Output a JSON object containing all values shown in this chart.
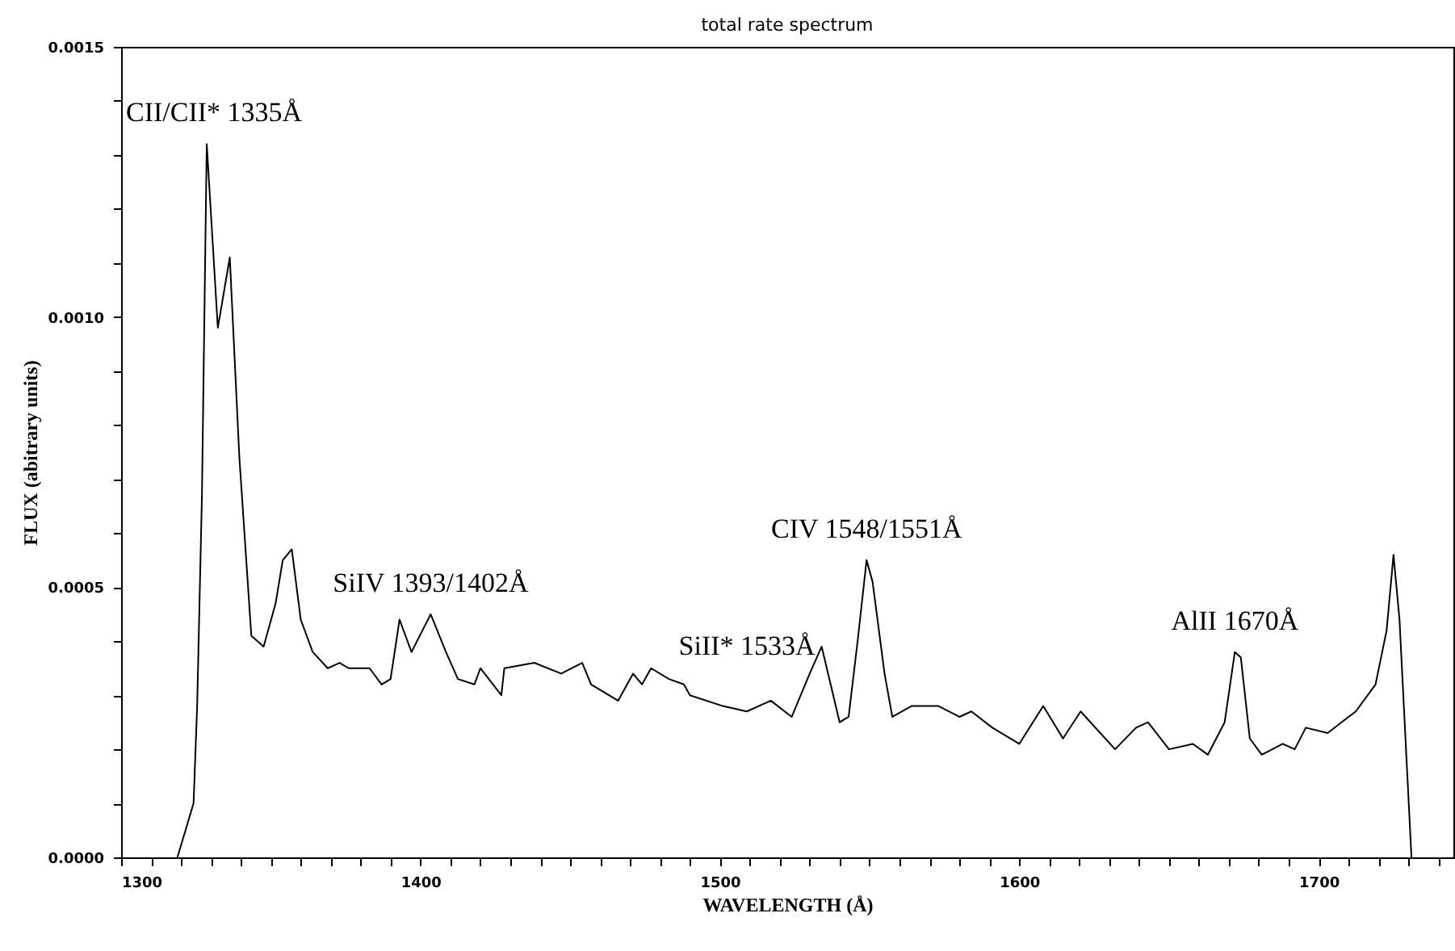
{
  "chart_data": {
    "type": "line",
    "title": "total rate spectrum",
    "xlabel": "WAVELENGTH (Å)",
    "ylabel": "FLUX (abitrary units)",
    "x": [
      1318.8,
      1324.2,
      1325.4,
      1327,
      1328.6,
      1332.3,
      1336.3,
      1339.5,
      1343.5,
      1347.6,
      1351.6,
      1354,
      1357,
      1360,
      1364,
      1369,
      1373,
      1376,
      1383,
      1387,
      1390,
      1393,
      1397,
      1403.4,
      1408.5,
      1412.5,
      1418,
      1420,
      1427,
      1428,
      1438,
      1447,
      1454,
      1457,
      1466,
      1471,
      1474,
      1477,
      1483,
      1488,
      1490,
      1501,
      1509,
      1517,
      1524,
      1530,
      1534,
      1540,
      1543,
      1546,
      1549,
      1551,
      1555,
      1557.6,
      1564,
      1573,
      1580,
      1584,
      1591,
      1600,
      1608,
      1614.6,
      1620.5,
      1632,
      1639,
      1643,
      1650,
      1658,
      1663,
      1668.6,
      1672,
      1674,
      1677,
      1681,
      1688,
      1692,
      1695.7,
      1703,
      1710,
      1712.4,
      1719,
      1722.7,
      1725,
      1727,
      1731
    ],
    "series": [
      {
        "color": "#000000",
        "values": [
          0,
          0.0001,
          0.00028,
          0.00067,
          0.00132,
          0.00098,
          0.00111,
          0.00074,
          0.00041,
          0.00039,
          0.00047,
          0.00055,
          0.00057,
          0.00044,
          0.00038,
          0.00035,
          0.00036,
          0.00035,
          0.00035,
          0.00032,
          0.00033,
          0.00044,
          0.00038,
          0.00045,
          0.00038,
          0.00033,
          0.00032,
          0.00035,
          0.0003,
          0.00035,
          0.00036,
          0.00034,
          0.00036,
          0.00032,
          0.00029,
          0.00034,
          0.00032,
          0.00035,
          0.00033,
          0.00032,
          0.0003,
          0.00028,
          0.00027,
          0.00029,
          0.00026,
          0.00034,
          0.00039,
          0.00025,
          0.00026,
          0.0004,
          0.00055,
          0.00051,
          0.00034,
          0.00026,
          0.00028,
          0.00028,
          0.00026,
          0.00027,
          0.00024,
          0.00021,
          0.00028,
          0.00022,
          0.00027,
          0.0002,
          0.00024,
          0.00025,
          0.0002,
          0.00021,
          0.00019,
          0.00025,
          0.00038,
          0.00037,
          0.00022,
          0.00019,
          0.00021,
          0.0002,
          0.00024,
          0.00023,
          0.00026,
          0.00027,
          0.00032,
          0.00042,
          0.00056,
          0.00044,
          0
        ]
      }
    ],
    "xlim": [
      1300,
      1745
    ],
    "xticks": [
      1300,
      {
        "value": 1310,
        "label": null
      },
      {
        "value": 1320,
        "label": null
      },
      {
        "value": 1330,
        "label": null
      },
      {
        "value": 1340,
        "label": null
      },
      {
        "value": 1350,
        "label": null
      },
      {
        "value": 1360,
        "label": null
      },
      {
        "value": 1370,
        "label": null
      },
      {
        "value": 1380,
        "label": null
      },
      {
        "value": 1390,
        "label": null
      },
      1400,
      {
        "value": 1410,
        "label": null
      },
      {
        "value": 1420,
        "label": null
      },
      {
        "value": 1430,
        "label": null
      },
      {
        "value": 1440,
        "label": null
      },
      {
        "value": 1450,
        "label": null
      },
      {
        "value": 1460,
        "label": null
      },
      {
        "value": 1470,
        "label": null
      },
      {
        "value": 1480,
        "label": null
      },
      {
        "value": 1490,
        "label": null
      },
      1500,
      {
        "value": 1510,
        "label": null
      },
      {
        "value": 1520,
        "label": null
      },
      {
        "value": 1530,
        "label": null
      },
      {
        "value": 1540,
        "label": null
      },
      {
        "value": 1550,
        "label": null
      },
      {
        "value": 1560,
        "label": null
      },
      {
        "value": 1570,
        "label": null
      },
      {
        "value": 1580,
        "label": null
      },
      {
        "value": 1590,
        "label": null
      },
      1600,
      {
        "value": 1610,
        "label": null
      },
      {
        "value": 1620,
        "label": null
      },
      {
        "value": 1630,
        "label": null
      },
      {
        "value": 1640,
        "label": null
      },
      {
        "value": 1650,
        "label": null
      },
      {
        "value": 1660,
        "label": null
      },
      {
        "value": 1670,
        "label": null
      },
      {
        "value": 1680,
        "label": null
      },
      {
        "value": 1690,
        "label": null
      },
      1700,
      {
        "value": 1710,
        "label": null
      },
      {
        "value": 1720,
        "label": null
      },
      {
        "value": 1730,
        "label": null
      },
      {
        "value": 1740,
        "label": null
      }
    ],
    "ylim": [
      0,
      0.0015
    ],
    "yticks": [
      {
        "value": 0,
        "label": "0.0000"
      },
      {
        "value": 0.0001,
        "label": null
      },
      {
        "value": 0.0002,
        "label": null
      },
      {
        "value": 0.0003,
        "label": null
      },
      {
        "value": 0.0004,
        "label": null
      },
      {
        "value": 0.0005,
        "label": "0.0005"
      },
      {
        "value": 0.0006,
        "label": null
      },
      {
        "value": 0.0007,
        "label": null
      },
      {
        "value": 0.0008,
        "label": null
      },
      {
        "value": 0.0009,
        "label": null
      },
      {
        "value": 0.001,
        "label": "0.0010"
      },
      {
        "value": 0.0011,
        "label": null
      },
      {
        "value": 0.0012,
        "label": null
      },
      {
        "value": 0.0013,
        "label": null
      },
      {
        "value": 0.0014,
        "label": null
      },
      {
        "value": 0.0015,
        "label": "0.0015"
      }
    ],
    "annotations": [
      {
        "text": "CII/CII* 1335Å",
        "x": 1328.6,
        "y": 0.00132
      },
      {
        "text": "SiIV 1393/1402Å",
        "x": 1403.4,
        "y": 0.00045
      },
      {
        "text": "SiII* 1533Å",
        "x": 1534,
        "y": 0.00039
      },
      {
        "text": "CIV 1548/1551Å",
        "x": 1549,
        "y": 0.00055
      },
      {
        "text": "AlII 1670Å",
        "x": 1672,
        "y": 0.00038
      }
    ],
    "grid": false,
    "marker": "none",
    "line_style": "solid"
  }
}
